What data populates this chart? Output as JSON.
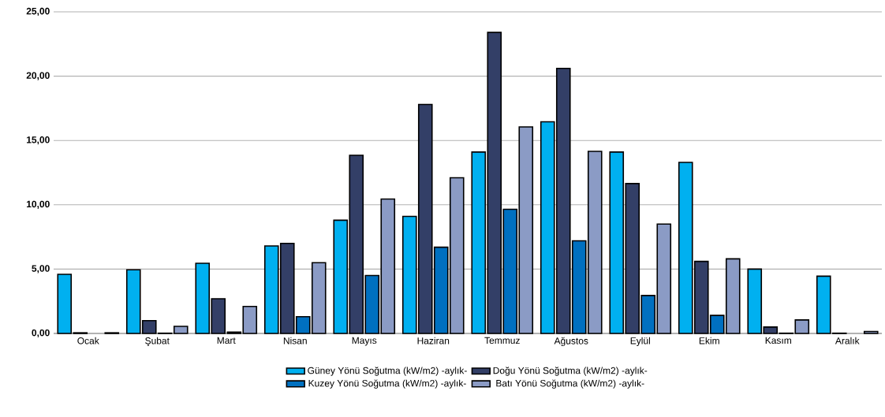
{
  "chart_data": {
    "type": "bar",
    "categories": [
      "Ocak",
      "Şubat",
      "Mart",
      "Nisan",
      "Mayıs",
      "Haziran",
      "Temmuz",
      "Ağustos",
      "Eylül",
      "Ekim",
      "Kasım",
      "Aralık"
    ],
    "series": [
      {
        "name": "Güney Yönü Soğutma (kW/m2) -aylık-",
        "color": "#00b0f0",
        "values": [
          4.6,
          4.95,
          5.45,
          6.8,
          8.8,
          9.1,
          14.1,
          16.45,
          14.1,
          13.3,
          5.0,
          4.45
        ]
      },
      {
        "name": "Doğu Yönü Soğutma (kW/m2) -aylık-",
        "color": "#333f67",
        "values": [
          0.05,
          1.0,
          2.7,
          7.0,
          13.85,
          17.8,
          23.4,
          20.6,
          11.65,
          5.6,
          0.5,
          0.02
        ]
      },
      {
        "name": "Kuzey Yönü Soğutma (kW/m2) -aylık-",
        "color": "#0070c0",
        "values": [
          null,
          0.02,
          0.1,
          1.3,
          4.5,
          6.7,
          9.65,
          7.2,
          2.95,
          1.4,
          0.02,
          null
        ]
      },
      {
        "name": "Batı Yönü Soğutma (kW/m2) -aylık-",
        "color": "#8b9bc5",
        "values": [
          0.05,
          0.55,
          2.1,
          5.5,
          10.45,
          12.1,
          16.05,
          14.15,
          8.5,
          5.8,
          1.05,
          0.15
        ]
      }
    ],
    "ylim": [
      0,
      25
    ],
    "yticks": [
      {
        "value": 0,
        "label": "0,00"
      },
      {
        "value": 5,
        "label": "5,00"
      },
      {
        "value": 10,
        "label": "10,00"
      },
      {
        "value": 15,
        "label": "15,00"
      },
      {
        "value": 20,
        "label": "20,00"
      },
      {
        "value": 25,
        "label": "25,00"
      }
    ],
    "grid": "y",
    "legend": "bottom"
  }
}
